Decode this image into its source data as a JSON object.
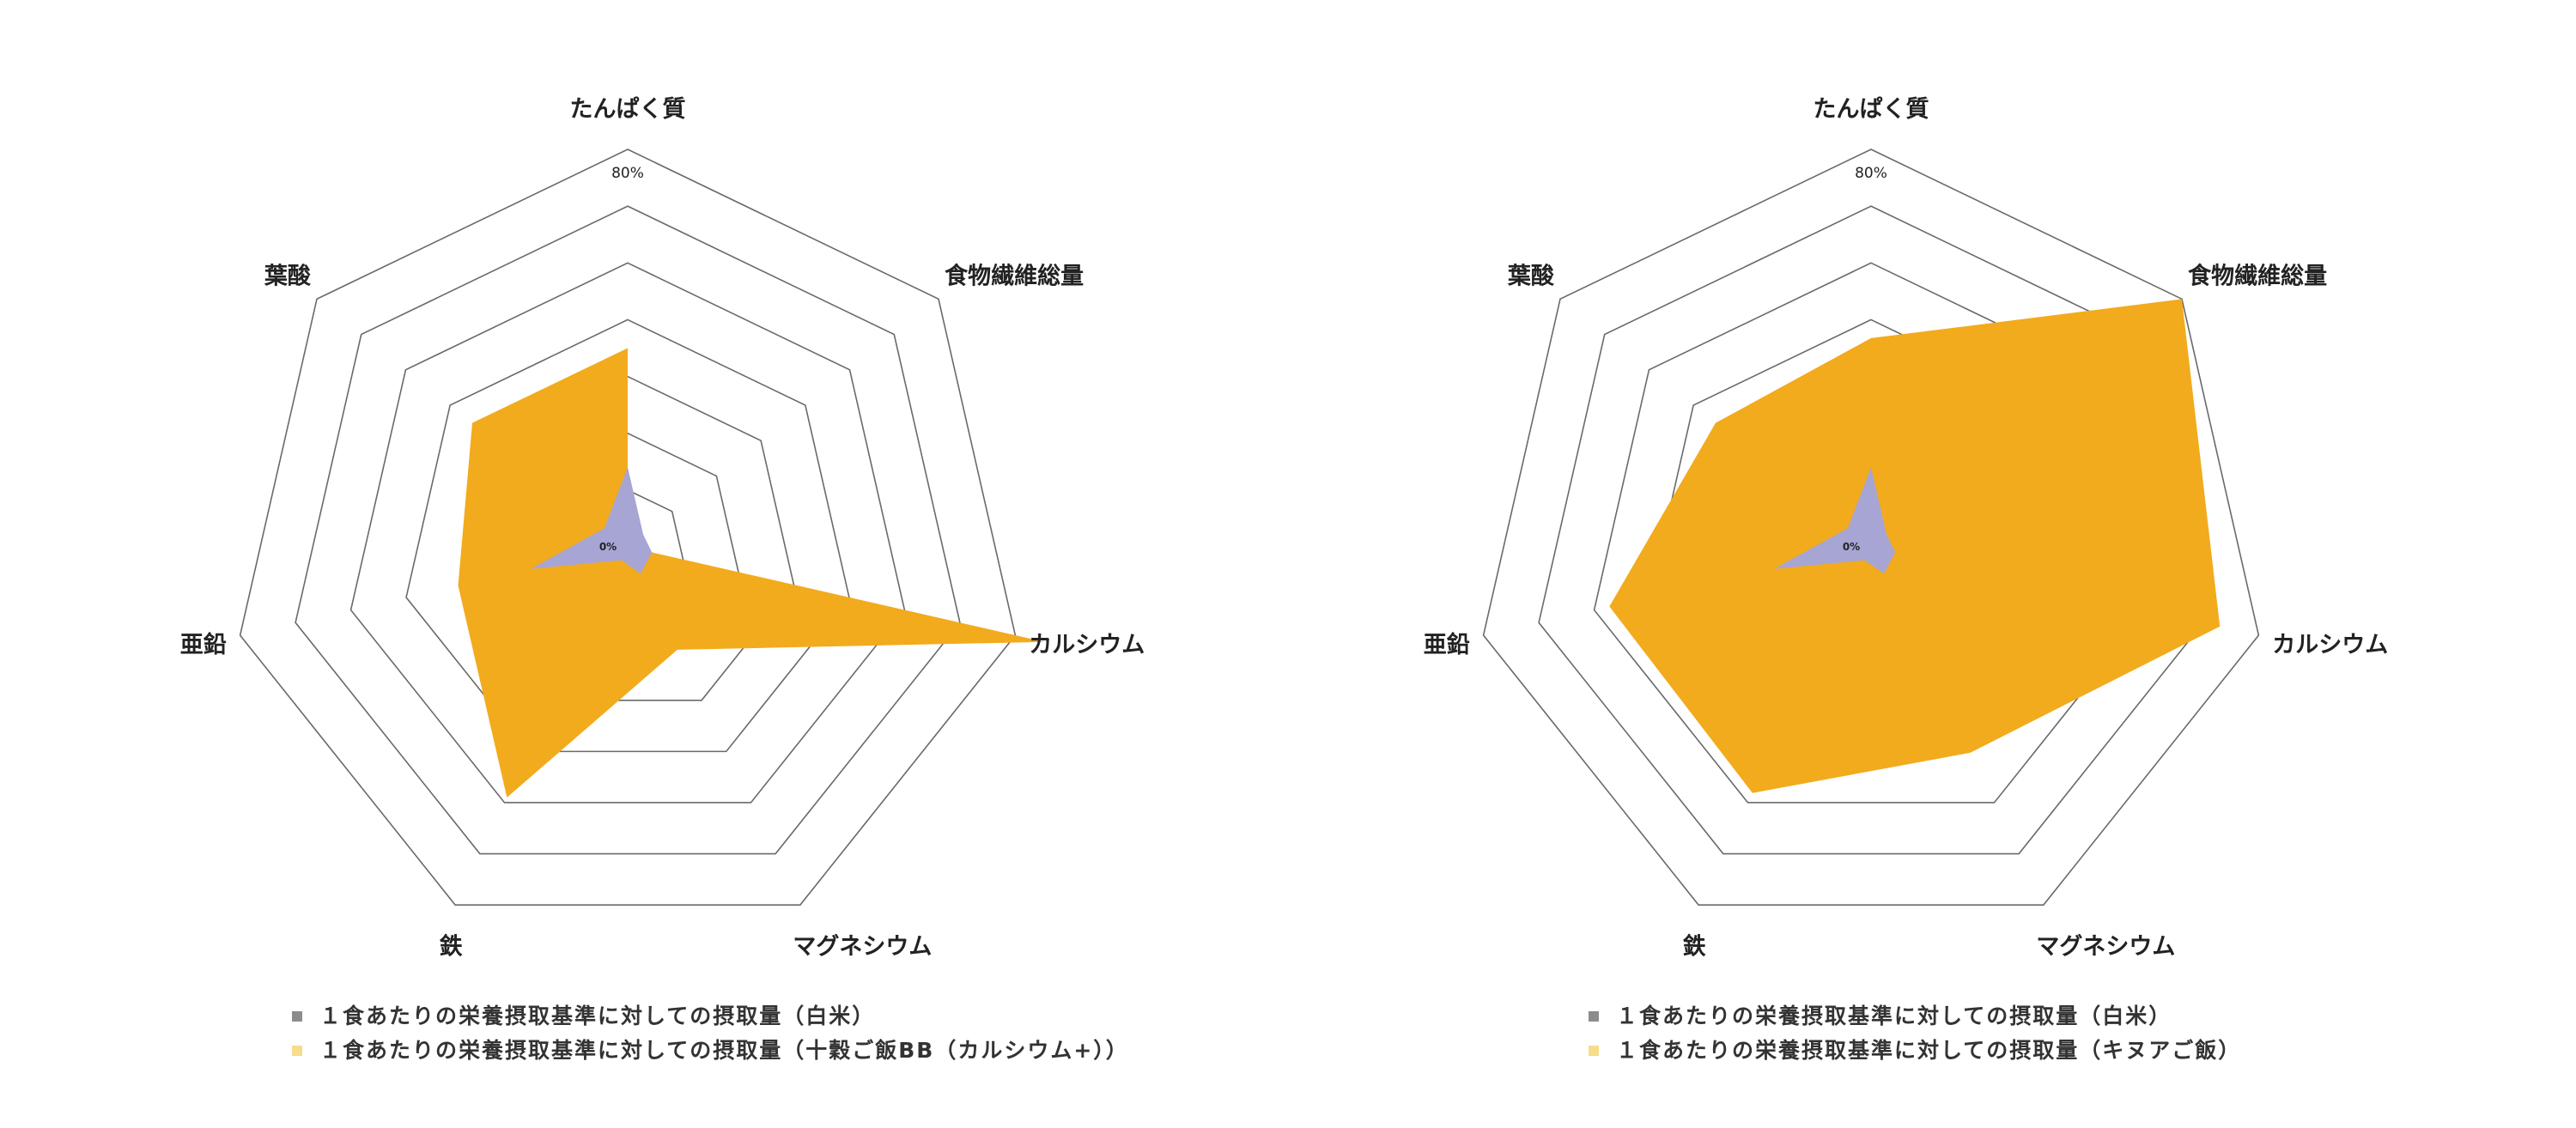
{
  "chart_data": [
    {
      "type": "radar",
      "axes": [
        "たんぱく質",
        "食物繊維総量",
        "カルシウム",
        "マグネシウム",
        "鉄",
        "亜鉛",
        "葉酸"
      ],
      "range": [
        0,
        80
      ],
      "tick_labels": {
        "max": "80%",
        "min": "0%"
      },
      "grid_levels": 7,
      "series": [
        {
          "name": "１食あたりの栄養摂取基準に対しての摂取量（十穀ご飯BB（カルシウム+））",
          "color": "#f2ab1d",
          "values": [
            40,
            0,
            86,
            23,
            56,
            35,
            40
          ]
        },
        {
          "name": "１食あたりの栄養摂取基準に対しての摂取量（白米）",
          "color": "#a7a5d3",
          "legend_color": "#8c8c8c",
          "values": [
            16,
            4,
            5,
            6,
            3,
            20,
            6
          ]
        }
      ]
    },
    {
      "type": "radar",
      "axes": [
        "たんぱく質",
        "食物繊維総量",
        "カルシウム",
        "マグネシウム",
        "鉄",
        "亜鉛",
        "葉酸"
      ],
      "range": [
        0,
        80
      ],
      "tick_labels": {
        "max": "80%",
        "min": "0%"
      },
      "grid_levels": 7,
      "series": [
        {
          "name": "１食あたりの栄養摂取基準に対しての摂取量（キヌアご飯）",
          "color": "#f2ab1d",
          "values": [
            42,
            80,
            72,
            46,
            55,
            54,
            40
          ]
        },
        {
          "name": "１食あたりの栄養摂取基準に対しての摂取量（白米）",
          "color": "#a7a5d3",
          "legend_color": "#8c8c8c",
          "values": [
            16,
            4,
            5,
            6,
            3,
            20,
            6
          ]
        }
      ]
    }
  ],
  "legends": [
    {
      "items": [
        {
          "label": "１食あたりの栄養摂取基準に対しての摂取量（白米）",
          "color": "#8c8c8c"
        },
        {
          "label": "１食あたりの栄養摂取基準に対しての摂取量（十穀ご飯BB（カルシウム+））",
          "color": "#f7dc8c"
        }
      ]
    },
    {
      "items": [
        {
          "label": "１食あたりの栄養摂取基準に対しての摂取量（白米）",
          "color": "#8c8c8c"
        },
        {
          "label": "１食あたりの栄養摂取基準に対しての摂取量（キヌアご飯）",
          "color": "#f7dc8c"
        }
      ]
    }
  ]
}
